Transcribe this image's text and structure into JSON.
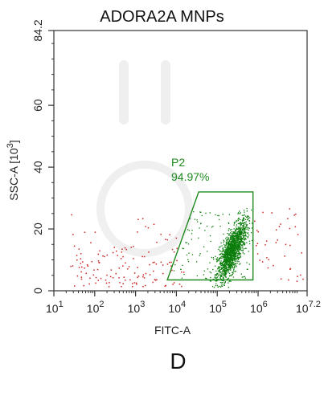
{
  "chart_data": {
    "type": "scatter",
    "title": "ADORA2A MNPs",
    "panel_letter": "D",
    "x_axis": {
      "label": "FITC-A",
      "scale": "log",
      "range": [
        10,
        15848932
      ],
      "ticks": [
        {
          "value": 10,
          "base": "10",
          "exp": "1"
        },
        {
          "value": 100,
          "base": "10",
          "exp": "2"
        },
        {
          "value": 1000,
          "base": "10",
          "exp": "3"
        },
        {
          "value": 10000,
          "base": "10",
          "exp": "4"
        },
        {
          "value": 100000,
          "base": "10",
          "exp": "5"
        },
        {
          "value": 1000000,
          "base": "10",
          "exp": "6"
        },
        {
          "value": 15848932,
          "base": "10",
          "exp": "7.2"
        }
      ]
    },
    "y_axis": {
      "label_main": "SSC-A",
      "label_unit_base": "10",
      "label_unit_exp": "3",
      "scale": "linear",
      "range": [
        0,
        84.2
      ],
      "ticks": [
        0,
        20,
        40,
        60,
        84.2
      ],
      "tick_labels": [
        "0",
        "20",
        "40",
        "60",
        "84.2"
      ]
    },
    "gate": {
      "name": "P2",
      "percent": "94.97%",
      "color": "#1f8a1f",
      "vertices": [
        [
          6000,
          3.5
        ],
        [
          35000,
          32
        ],
        [
          750000,
          32
        ],
        [
          750000,
          3.5
        ]
      ]
    },
    "colors": {
      "inside": "#0b7d0b",
      "outside": "#cc2222",
      "axis": "#333333"
    },
    "grid": false,
    "legend": "none"
  }
}
